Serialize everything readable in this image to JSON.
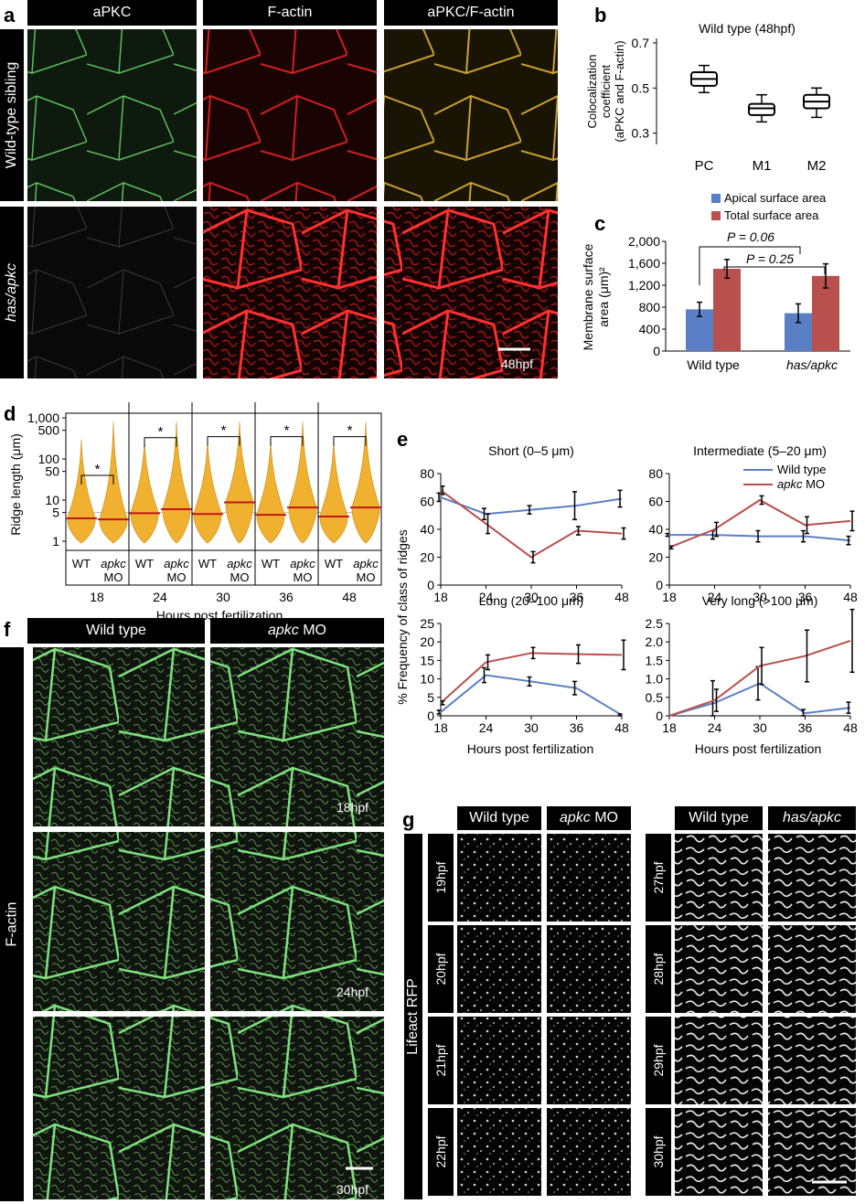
{
  "panels": {
    "a": {
      "letter": "a",
      "col_headers": [
        "aPKC",
        "F-actin",
        "aPKC/F-actin"
      ],
      "row_labels": [
        "Wild-type sibling",
        "has/apkc"
      ],
      "timepoint": "48hpf"
    },
    "b": {
      "letter": "b",
      "title": "Wild type (48hpf)",
      "ylabel_lines": [
        "Colocalization",
        "coefficient",
        "(aPKC and F-actin)"
      ],
      "yticks": [
        "0.7",
        "0.5",
        "0.3"
      ],
      "categories": [
        "PC",
        "M1",
        "M2"
      ]
    },
    "c": {
      "letter": "c",
      "legend": [
        "Apical surface area",
        "Total surface area"
      ],
      "ylabel_lines": [
        "Membrane surface",
        "area (μm)²"
      ],
      "yticks": [
        "2,000",
        "1,600",
        "1,200",
        "800",
        "400",
        "0"
      ],
      "categories": [
        "Wild type",
        "has/apkc"
      ],
      "p_values": [
        "P = 0.06",
        "P = 0.25"
      ]
    },
    "d": {
      "letter": "d",
      "ylabel": "Ridge length (μm)",
      "yticks": [
        "1,000",
        "500",
        "100",
        "50",
        "10",
        "5",
        "1"
      ],
      "groups": [
        "18",
        "24",
        "30",
        "36",
        "48"
      ],
      "wt_label": "WT",
      "mo_label_top": "apkc",
      "mo_label_bottom": "MO",
      "star": "*",
      "xlabel": "Hours post fertilization"
    },
    "e": {
      "letter": "e",
      "ylabel": "% Frequency of class of ridges",
      "xlabel": "Hours post fertilization",
      "xticks": [
        "18",
        "24",
        "30",
        "36",
        "48"
      ],
      "legend": [
        "Wild type",
        "apkc MO"
      ],
      "subplots": [
        {
          "title": "Short (0–5 μm)",
          "yticks": [
            "80",
            "60",
            "40",
            "20",
            "0"
          ]
        },
        {
          "title": "Intermediate (5–20 μm)",
          "yticks": [
            "80",
            "60",
            "40",
            "20",
            "0"
          ]
        },
        {
          "title": "Long (20–100 μm)",
          "yticks": [
            "25",
            "20",
            "15",
            "10",
            "5",
            "0"
          ]
        },
        {
          "title": "Very long (>100 μm)",
          "yticks": [
            "2.5",
            "2.0",
            "1.5",
            "1.0",
            "0.5",
            "0"
          ]
        }
      ]
    },
    "f": {
      "letter": "f",
      "col_headers": [
        "Wild type",
        "apkc MO"
      ],
      "row_label": "F-actin",
      "timepoints": [
        "18hpf",
        "24hpf",
        "30hpf"
      ]
    },
    "g": {
      "letter": "g",
      "col_headers_left": [
        "Wild type",
        "apkc MO"
      ],
      "col_headers_right": [
        "Wild type",
        "has/apkc"
      ],
      "row_label": "Lifeact RFP",
      "timepoints_left": [
        "19hpf",
        "20hpf",
        "21hpf",
        "22hpf"
      ],
      "timepoints_right": [
        "27hpf",
        "28hpf",
        "29hpf",
        "30hpf"
      ]
    }
  },
  "chart_data": [
    {
      "type": "box",
      "title": "Wild type (48hpf)",
      "categories": [
        "PC",
        "M1",
        "M2"
      ],
      "ylim": [
        0.2,
        0.7
      ],
      "boxes": [
        {
          "min": 0.48,
          "q1": 0.51,
          "median": 0.54,
          "q3": 0.57,
          "max": 0.6
        },
        {
          "min": 0.35,
          "q1": 0.38,
          "median": 0.41,
          "q3": 0.43,
          "max": 0.47
        },
        {
          "min": 0.37,
          "q1": 0.41,
          "median": 0.44,
          "q3": 0.47,
          "max": 0.5
        }
      ]
    },
    {
      "type": "bar",
      "categories": [
        "Wild type",
        "has/apkc"
      ],
      "ylim": [
        0,
        2000
      ],
      "series": [
        {
          "name": "Apical surface area",
          "values": [
            760,
            690
          ],
          "errors": [
            130,
            170
          ],
          "color": "#5b7fc4"
        },
        {
          "name": "Total surface area",
          "values": [
            1500,
            1370
          ],
          "errors": [
            170,
            220
          ],
          "color": "#b8504d"
        }
      ]
    },
    {
      "type": "line",
      "title": "Short (0–5 μm)",
      "x": [
        18,
        24,
        30,
        36,
        48
      ],
      "ylim": [
        0,
        80
      ],
      "series": [
        {
          "name": "Wild type",
          "values": [
            63,
            51,
            54,
            57,
            62
          ],
          "errors": [
            3,
            4,
            3,
            10,
            6
          ],
          "color": "#5b7fc4"
        },
        {
          "name": "apkc MO",
          "values": [
            68,
            44,
            20,
            39,
            37
          ],
          "errors": [
            3,
            7,
            4,
            3,
            4
          ],
          "color": "#b8504d"
        }
      ]
    },
    {
      "type": "line",
      "title": "Intermediate (5–20 μm)",
      "x": [
        18,
        24,
        30,
        36,
        48
      ],
      "ylim": [
        0,
        80
      ],
      "series": [
        {
          "name": "Wild type",
          "values": [
            36,
            36,
            35,
            35,
            32
          ],
          "errors": [
            1,
            3,
            4,
            4,
            3
          ],
          "color": "#5b7fc4"
        },
        {
          "name": "apkc MO",
          "values": [
            27,
            40,
            61,
            43,
            46
          ],
          "errors": [
            1,
            5,
            3,
            6,
            7
          ],
          "color": "#b8504d"
        }
      ]
    },
    {
      "type": "line",
      "title": "Long (20–100 μm)",
      "x": [
        18,
        24,
        30,
        36,
        48
      ],
      "ylim": [
        0,
        25
      ],
      "series": [
        {
          "name": "Wild type",
          "values": [
            1,
            11,
            9.3,
            7.5,
            0.2
          ],
          "errors": [
            0.5,
            2,
            1.2,
            1.8,
            0.3
          ],
          "color": "#5b7fc4"
        },
        {
          "name": "apkc MO",
          "values": [
            3.5,
            14.5,
            17,
            16.7,
            16.5
          ],
          "errors": [
            0.5,
            2,
            1.5,
            2.5,
            4
          ],
          "color": "#b8504d"
        }
      ]
    },
    {
      "type": "line",
      "title": "Very long (>100 μm)",
      "x": [
        18,
        24,
        30,
        36,
        48
      ],
      "ylim": [
        0,
        2.5
      ],
      "series": [
        {
          "name": "Wild type",
          "values": [
            0,
            0.35,
            0.88,
            0.07,
            0.22
          ],
          "errors": [
            0,
            0.6,
            0.45,
            0.1,
            0.15
          ],
          "color": "#5b7fc4"
        },
        {
          "name": "apkc MO",
          "values": [
            0,
            0.42,
            1.35,
            1.62,
            2.03
          ],
          "errors": [
            0,
            0.3,
            0.5,
            0.7,
            0.85
          ],
          "color": "#b8504d"
        }
      ]
    }
  ]
}
